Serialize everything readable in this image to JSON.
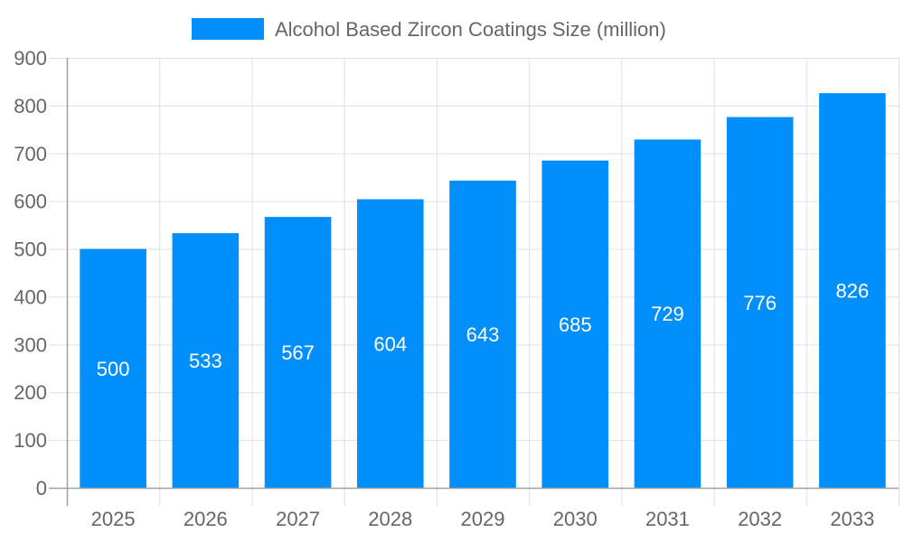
{
  "chart_data": {
    "type": "bar",
    "legend": {
      "label": "Alcohol Based Zircon Coatings Size (million)",
      "placement": "top"
    },
    "categories": [
      "2025",
      "2026",
      "2027",
      "2028",
      "2029",
      "2030",
      "2031",
      "2032",
      "2033"
    ],
    "series": [
      {
        "name": "Alcohol Based Zircon Coatings Size (million)",
        "values": [
          500,
          533,
          567,
          604,
          643,
          685,
          729,
          776,
          826
        ]
      }
    ],
    "ylim": [
      0,
      900
    ],
    "yticks": [
      0,
      100,
      200,
      300,
      400,
      500,
      600,
      700,
      800,
      900
    ],
    "grid": true,
    "data_labels": true,
    "colors": {
      "bar": "#038ffb",
      "grid": "#e0e0e0",
      "axis": "#a0a0a0",
      "text": "#666666",
      "label": "#ffffff"
    }
  }
}
